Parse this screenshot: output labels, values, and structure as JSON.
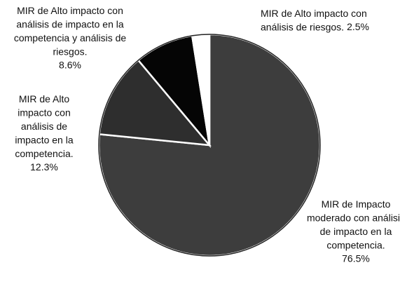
{
  "chart_data": {
    "type": "pie",
    "categories": [
      "MIR de Impacto moderado con análisis de impacto en la competencia.",
      "MIR de Alto impacto con análisis de impacto en la competencia.",
      "MIR de Alto impacto con análisis de impacto en la competencia y análisis de riesgos.",
      "MIR de Alto impacto con análisis de riesgos."
    ],
    "values": [
      76.5,
      12.3,
      8.6,
      2.5
    ],
    "value_labels": [
      "76.5%",
      "12.3%",
      "8.6%",
      "2.5%"
    ],
    "colors": [
      "#3d3d3d",
      "#2e2e2e",
      "#050505",
      "#ffffff"
    ]
  }
}
